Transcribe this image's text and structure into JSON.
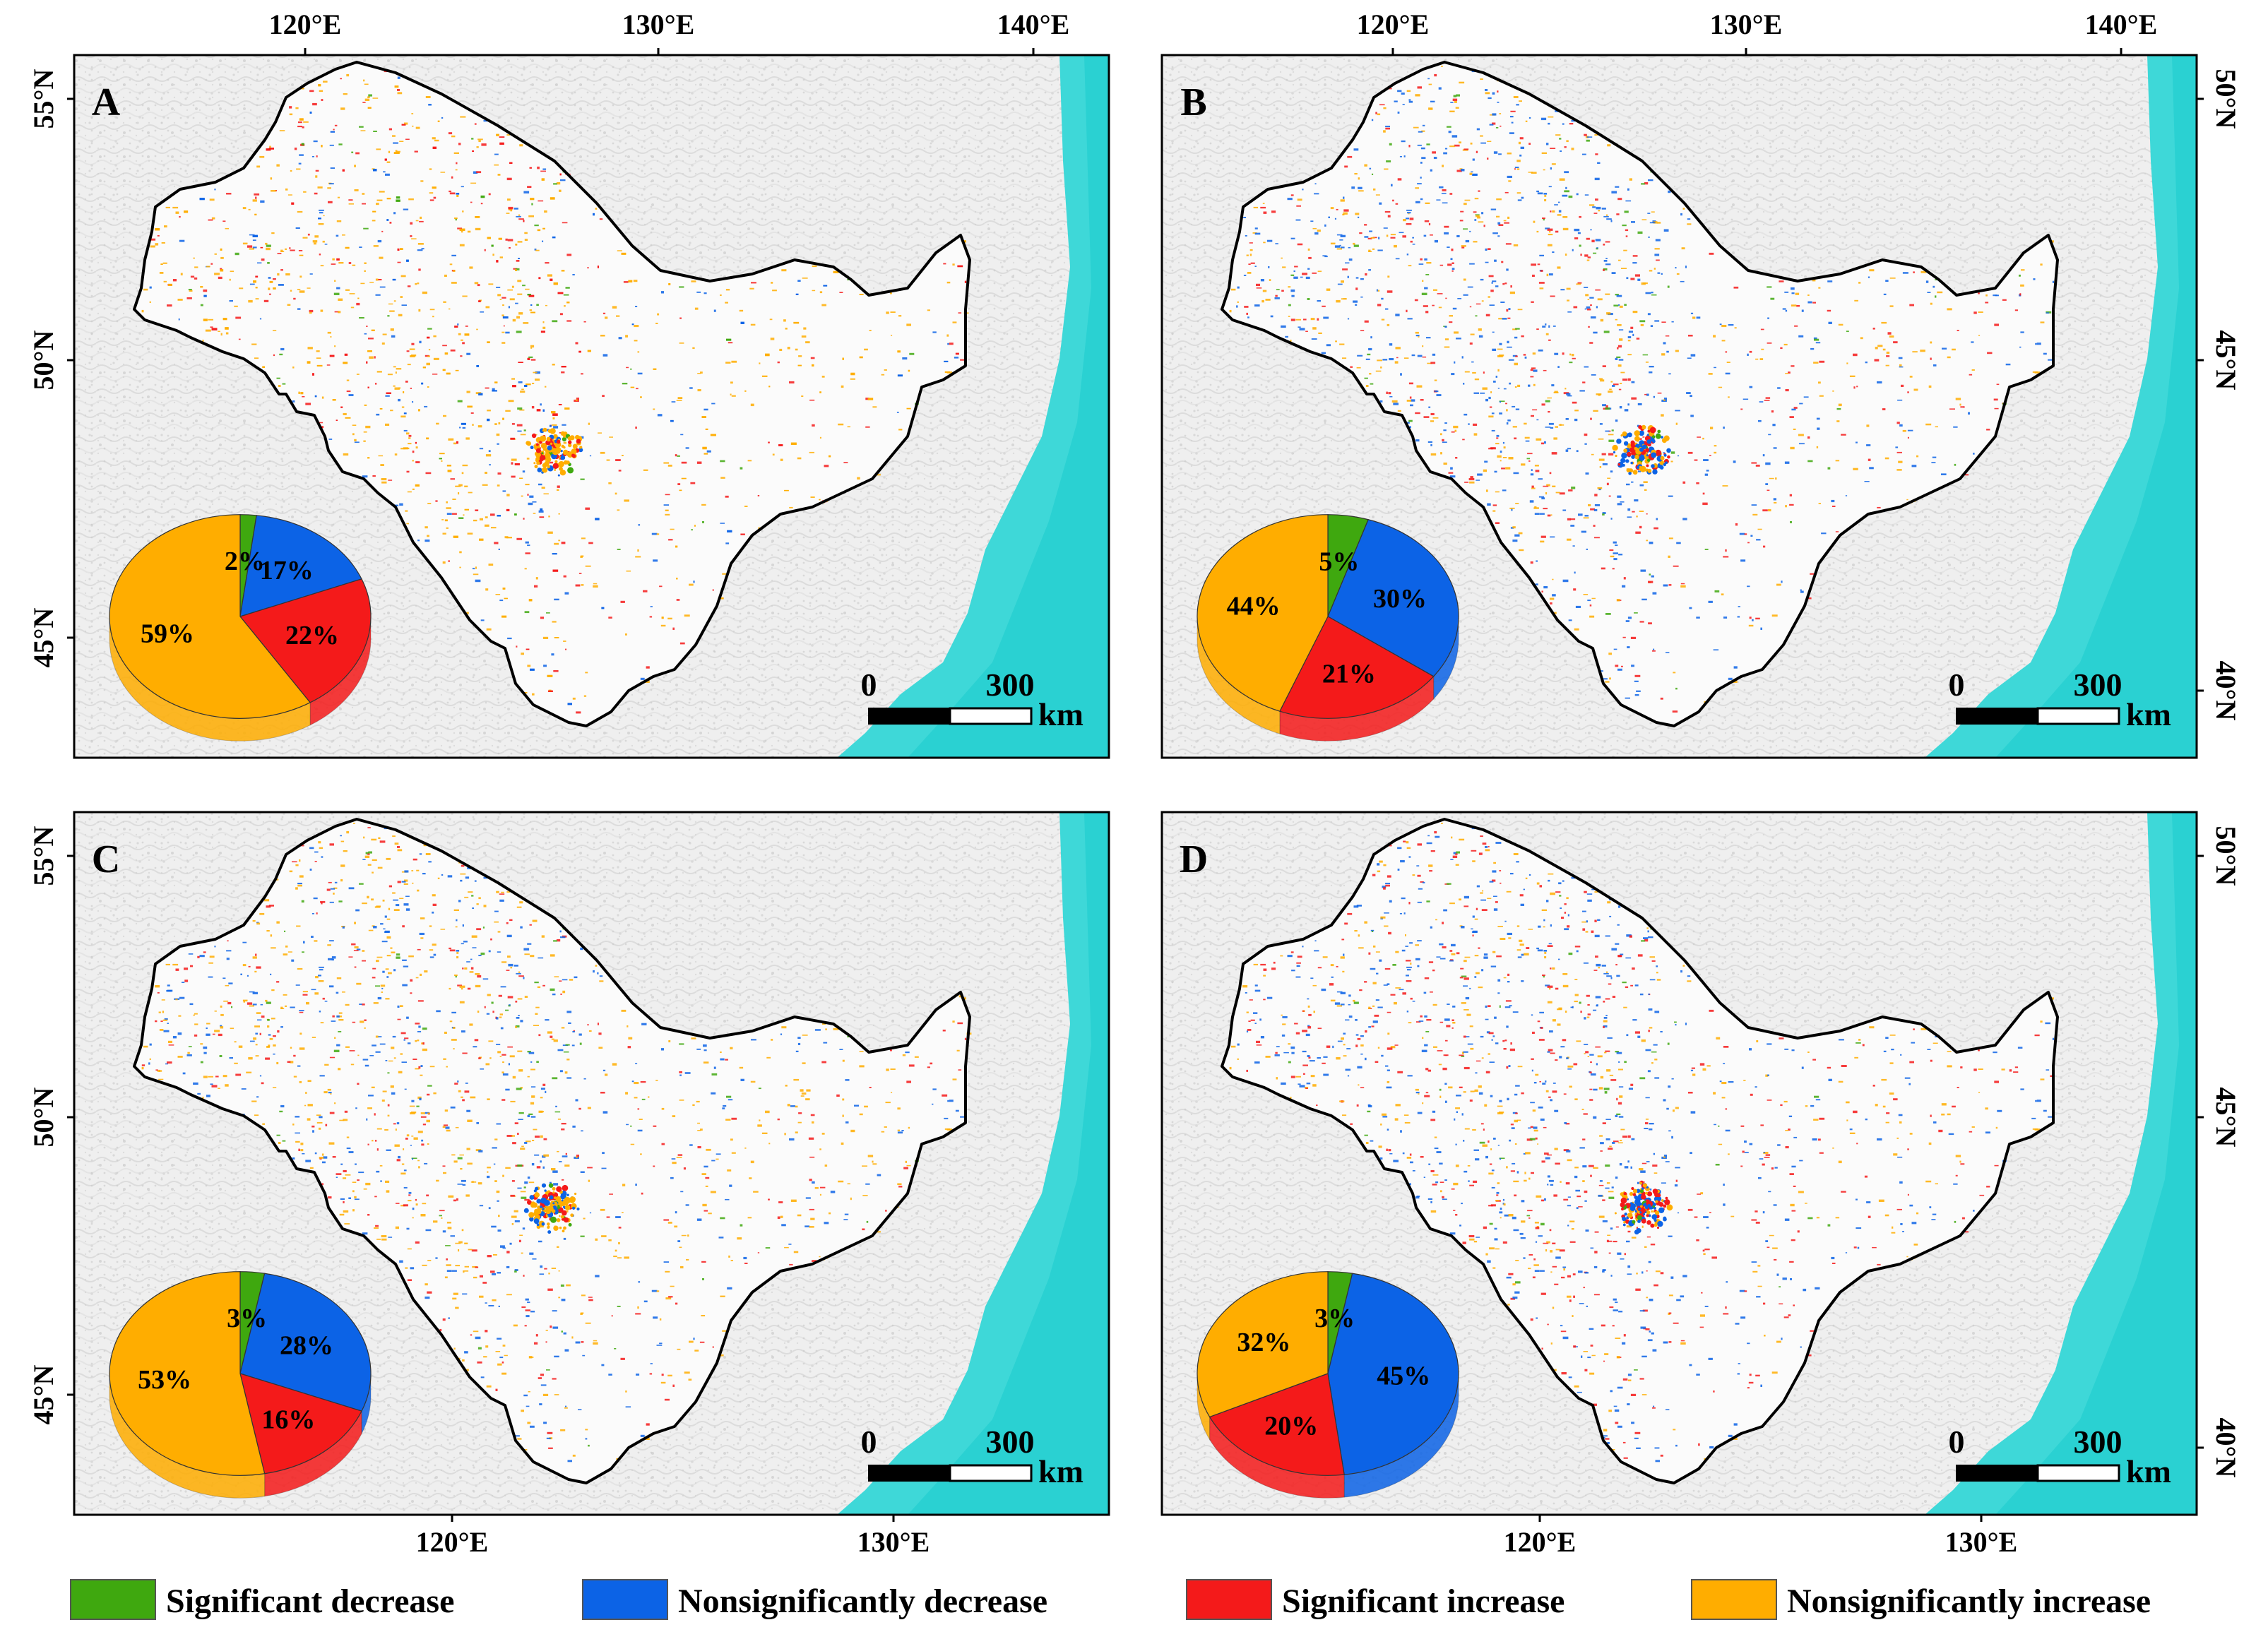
{
  "colors": {
    "significant_decrease": "#3fa80f",
    "nonsignificant_decrease": "#0c63e6",
    "significant_increase": "#f41a1a",
    "nonsignificant_increase": "#ffad00",
    "sea": "#3ed8d8",
    "land": "#eeeeee"
  },
  "legend": [
    {
      "key": "significant_decrease",
      "label": "Significant decrease"
    },
    {
      "key": "nonsignificant_decrease",
      "label": "Nonsignificantly decrease"
    },
    {
      "key": "significant_increase",
      "label": "Significant increase"
    },
    {
      "key": "nonsignificant_increase",
      "label": "Nonsignificantly increase"
    }
  ],
  "scale_bar": {
    "start": "0",
    "end": "300",
    "unit": "km"
  },
  "panels": [
    {
      "label": "A",
      "top_ticks": [
        "120°E",
        "130°E",
        "140°E"
      ],
      "left_ticks": [
        "55°N",
        "50°N",
        "45°N"
      ],
      "right_ticks": [],
      "bottom_ticks": [],
      "pie": [
        {
          "key": "significant_decrease",
          "pct": 2,
          "text": "2%"
        },
        {
          "key": "nonsignificant_decrease",
          "pct": 17,
          "text": "17%"
        },
        {
          "key": "significant_increase",
          "pct": 22,
          "text": "22%"
        },
        {
          "key": "nonsignificant_increase",
          "pct": 59,
          "text": "59%"
        }
      ]
    },
    {
      "label": "B",
      "top_ticks": [
        "120°E",
        "130°E",
        "140°E"
      ],
      "left_ticks": [],
      "right_ticks": [
        "50°N",
        "45°N",
        "40°N"
      ],
      "bottom_ticks": [],
      "pie": [
        {
          "key": "significant_decrease",
          "pct": 5,
          "text": "5%"
        },
        {
          "key": "nonsignificant_decrease",
          "pct": 30,
          "text": "30%"
        },
        {
          "key": "significant_increase",
          "pct": 21,
          "text": "21%"
        },
        {
          "key": "nonsignificant_increase",
          "pct": 44,
          "text": "44%"
        }
      ]
    },
    {
      "label": "C",
      "top_ticks": [],
      "left_ticks": [
        "55°N",
        "50°N",
        "45°N"
      ],
      "right_ticks": [],
      "bottom_ticks": [
        "120°E",
        "130°E"
      ],
      "pie": [
        {
          "key": "significant_decrease",
          "pct": 3,
          "text": "3%"
        },
        {
          "key": "nonsignificant_decrease",
          "pct": 28,
          "text": "28%"
        },
        {
          "key": "significant_increase",
          "pct": 16,
          "text": "16%"
        },
        {
          "key": "nonsignificant_increase",
          "pct": 53,
          "text": "53%"
        }
      ]
    },
    {
      "label": "D",
      "top_ticks": [],
      "left_ticks": [],
      "right_ticks": [
        "50°N",
        "45°N",
        "40°N"
      ],
      "bottom_ticks": [
        "120°E",
        "130°E"
      ],
      "pie": [
        {
          "key": "significant_decrease",
          "pct": 3,
          "text": "3%"
        },
        {
          "key": "nonsignificant_decrease",
          "pct": 45,
          "text": "45%"
        },
        {
          "key": "significant_increase",
          "pct": 20,
          "text": "20%"
        },
        {
          "key": "nonsignificant_increase",
          "pct": 32,
          "text": "32%"
        }
      ]
    }
  ]
}
